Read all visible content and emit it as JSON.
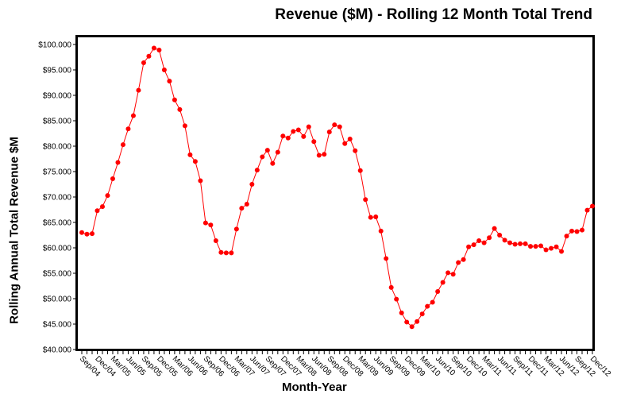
{
  "chart_data": {
    "type": "line",
    "title": "Revenue ($M) - Rolling 12 Month Total Trend",
    "xlabel": "Month-Year",
    "ylabel": "Rolling Annual Total Revenue $M",
    "ylim": [
      40000,
      100000
    ],
    "yticks": [
      "$40.000",
      "$45.000",
      "$50.000",
      "$55.000",
      "$60.000",
      "$65.000",
      "$70.000",
      "$75.000",
      "$80.000",
      "$85.000",
      "$90.000",
      "$95.000",
      "$100.000"
    ],
    "xtick_labels": [
      "Sep/04",
      "Dec/04",
      "Mar/05",
      "Jun/05",
      "Sep/05",
      "Dec/05",
      "Mar/06",
      "Jun/06",
      "Sep/06",
      "Dec/06",
      "Mar/07",
      "Jun/07",
      "Sep/07",
      "Dec/07",
      "Mar/08",
      "Jun/08",
      "Sep/08",
      "Dec/08",
      "Mar/09",
      "Jun/09",
      "Sep/09",
      "Dec/09",
      "Mar/10",
      "Jun/10",
      "Sep/10",
      "Dec/10",
      "Mar/11",
      "Jun/11",
      "Sep/11",
      "Dec/11",
      "Mar/12",
      "Jun/12",
      "Sep/12",
      "Dec/12"
    ],
    "grid": false,
    "legend": "none",
    "line_color": "#ff0000",
    "series": [
      {
        "values": [
          63000,
          62700,
          62800,
          67300,
          68100,
          70300,
          73600,
          76800,
          80300,
          83400,
          86000,
          91000,
          96400,
          97700,
          99300,
          98900,
          95000,
          92800,
          89100,
          87200,
          84000,
          78300,
          77000,
          73200,
          64900,
          64500,
          61400,
          59100,
          59000,
          59000,
          63700,
          67800,
          68600,
          72500,
          75300,
          77900,
          79200,
          76600,
          78800,
          82000,
          81600,
          82900,
          83200,
          81900,
          83800,
          80900,
          78200,
          78400,
          82800,
          84200,
          83800,
          80500,
          81400,
          79100,
          75200,
          69500,
          66000,
          66100,
          63300,
          57900,
          52200,
          49900,
          47200,
          45400,
          44500,
          45500,
          47000,
          48500,
          49300,
          51400,
          53200,
          55100,
          54800,
          57100,
          57700,
          60200,
          60600,
          61400,
          61000,
          62000,
          63800,
          62500,
          61500,
          61000,
          60700,
          60800,
          60800,
          60300,
          60300,
          60400,
          59600,
          59900,
          60200,
          59300,
          62300,
          63300,
          63200,
          63500,
          67400,
          68200
        ]
      }
    ]
  }
}
